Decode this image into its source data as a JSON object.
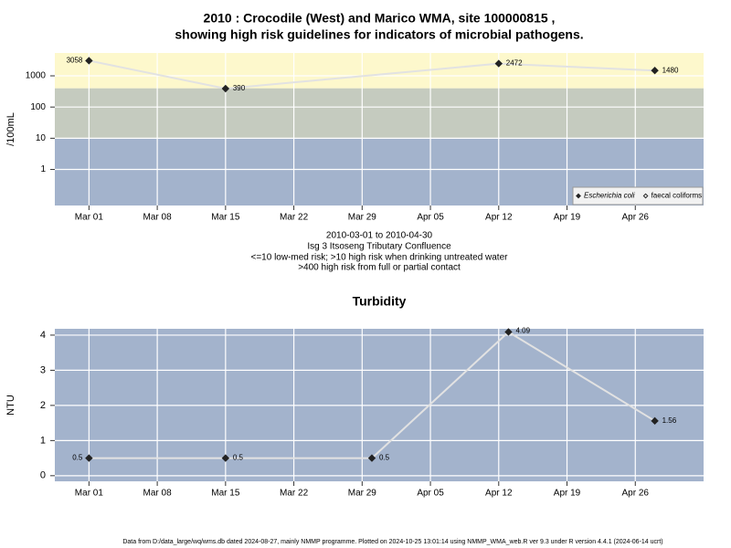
{
  "chart_data": [
    {
      "type": "line",
      "title": [
        "2010 : Crocodile (West) and Marico WMA, site 100000815 ,",
        "showing high risk guidelines for indicators of microbial pathogens."
      ],
      "ylabel": "/100mL",
      "log_scale": true,
      "ylim": [
        0.07,
        5400
      ],
      "yticks": [
        1,
        10,
        100,
        1000
      ],
      "xlim": [
        "2010-02-25T12:00:00Z",
        "2010-05-03T00:00:00Z"
      ],
      "xticks": [
        {
          "value": "2010-03-01",
          "label": "Mar 01"
        },
        {
          "value": "2010-03-08",
          "label": "Mar 08"
        },
        {
          "value": "2010-03-15",
          "label": "Mar 15"
        },
        {
          "value": "2010-03-22",
          "label": "Mar 22"
        },
        {
          "value": "2010-03-29",
          "label": "Mar 29"
        },
        {
          "value": "2010-04-05",
          "label": "Apr 05"
        },
        {
          "value": "2010-04-12",
          "label": "Apr 12"
        },
        {
          "value": "2010-04-19",
          "label": "Apr 19"
        },
        {
          "value": "2010-04-26",
          "label": "Apr 26"
        }
      ],
      "grid": true,
      "thresholds": [
        10,
        400
      ],
      "band_colors": [
        "#a3b3cc",
        "#c5cbbf",
        "#fdf8cc"
      ],
      "line_color": "#e2e2e2",
      "legend": "bottom-right",
      "series": [
        {
          "name": "Escherichia coli",
          "color": "#222222",
          "marker": "filled",
          "x": [
            "2010-03-01",
            "2010-03-15",
            "2010-04-12",
            "2010-04-28"
          ],
          "values": [
            3058,
            390,
            2472,
            1480
          ]
        },
        {
          "name": "faecal coliforms",
          "color": "#222222",
          "marker": "open",
          "x": [],
          "values": []
        }
      ],
      "annotations": [
        "2010-03-01 to 2010-04-30",
        "Isg 3 Itsoseng Tributary Confluence",
        "<=10 low-med risk; >10 high risk when drinking untreated water",
        ">400 high risk from full or partial contact"
      ]
    },
    {
      "type": "line",
      "title": [
        "Turbidity"
      ],
      "ylabel": "NTU",
      "log_scale": false,
      "ylim": [
        -0.16,
        4.18
      ],
      "yticks": [
        0,
        1,
        2,
        3,
        4
      ],
      "xlim": [
        "2010-02-25T12:00:00Z",
        "2010-05-03T00:00:00Z"
      ],
      "xticks": [
        {
          "value": "2010-03-01",
          "label": "Mar 01"
        },
        {
          "value": "2010-03-08",
          "label": "Mar 08"
        },
        {
          "value": "2010-03-15",
          "label": "Mar 15"
        },
        {
          "value": "2010-03-22",
          "label": "Mar 22"
        },
        {
          "value": "2010-03-29",
          "label": "Mar 29"
        },
        {
          "value": "2010-04-05",
          "label": "Apr 05"
        },
        {
          "value": "2010-04-12",
          "label": "Apr 12"
        },
        {
          "value": "2010-04-19",
          "label": "Apr 19"
        },
        {
          "value": "2010-04-26",
          "label": "Apr 26"
        }
      ],
      "grid": true,
      "background": "#a3b3cc",
      "line_color": "#e2e2e2",
      "series": [
        {
          "name": "Turbidity",
          "color": "#222222",
          "marker": "filled",
          "x": [
            "2010-03-01",
            "2010-03-15",
            "2010-03-30",
            "2010-04-13",
            "2010-04-28"
          ],
          "values": [
            0.5,
            0.5,
            0.5,
            4.09,
            1.56
          ]
        }
      ]
    }
  ],
  "footer": "Data from D:/data_large/wq/wms.db dated 2024-08-27, mainly NMMP programme. Plotted on 2024-10-25 13:01:14 using NMMP_WMA_web.R ver 9.3 under R version 4.4.1 (2024-06-14 ucrt)"
}
